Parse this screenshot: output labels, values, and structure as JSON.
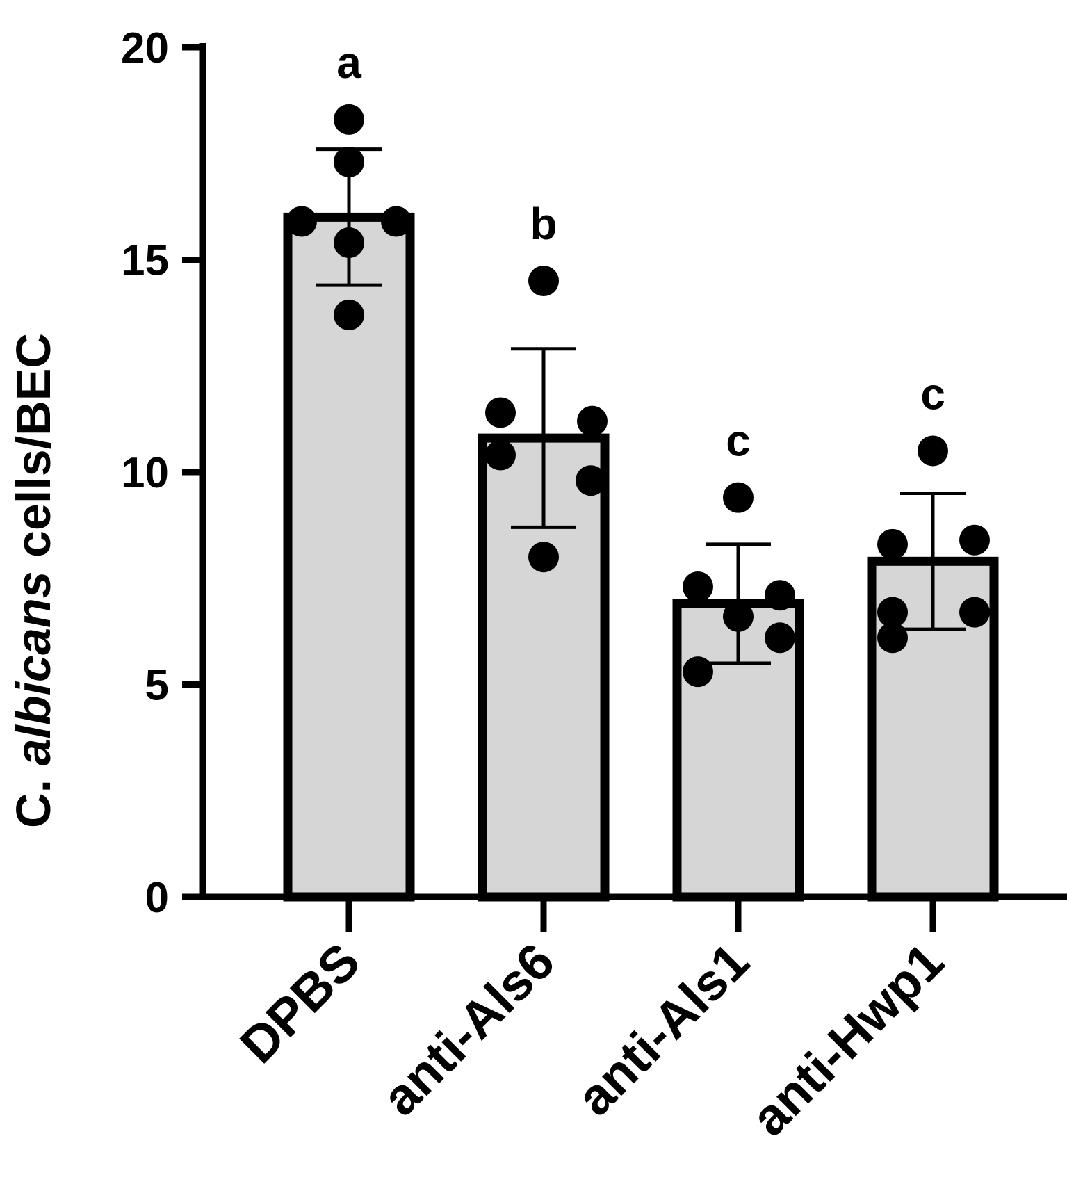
{
  "chart_data": {
    "type": "bar",
    "ylabel_parts": [
      "C. ",
      "albicans",
      " cells/BEC"
    ],
    "ylim": [
      0,
      20
    ],
    "yticks": [
      "0",
      "5",
      "10",
      "15",
      "20"
    ],
    "categories": [
      "DPBS",
      "anti-Als6",
      "anti-Als1",
      "anti-Hwp1"
    ],
    "values": [
      16.0,
      10.8,
      6.9,
      7.9
    ],
    "error": [
      1.6,
      2.1,
      1.4,
      1.6
    ],
    "points": [
      [
        18.3,
        17.3,
        15.9,
        15.9,
        15.4,
        13.7
      ],
      [
        14.5,
        11.4,
        11.2,
        10.4,
        9.8,
        8.0
      ],
      [
        9.4,
        7.3,
        7.1,
        6.6,
        6.1,
        5.3
      ],
      [
        10.5,
        8.3,
        8.4,
        6.7,
        6.7,
        6.1
      ]
    ],
    "significance": [
      "a",
      "b",
      "c",
      "c"
    ],
    "colors": {
      "bar_fill": "#d6d6d6",
      "stroke": "#000000"
    },
    "grid": false,
    "legend": "none"
  }
}
